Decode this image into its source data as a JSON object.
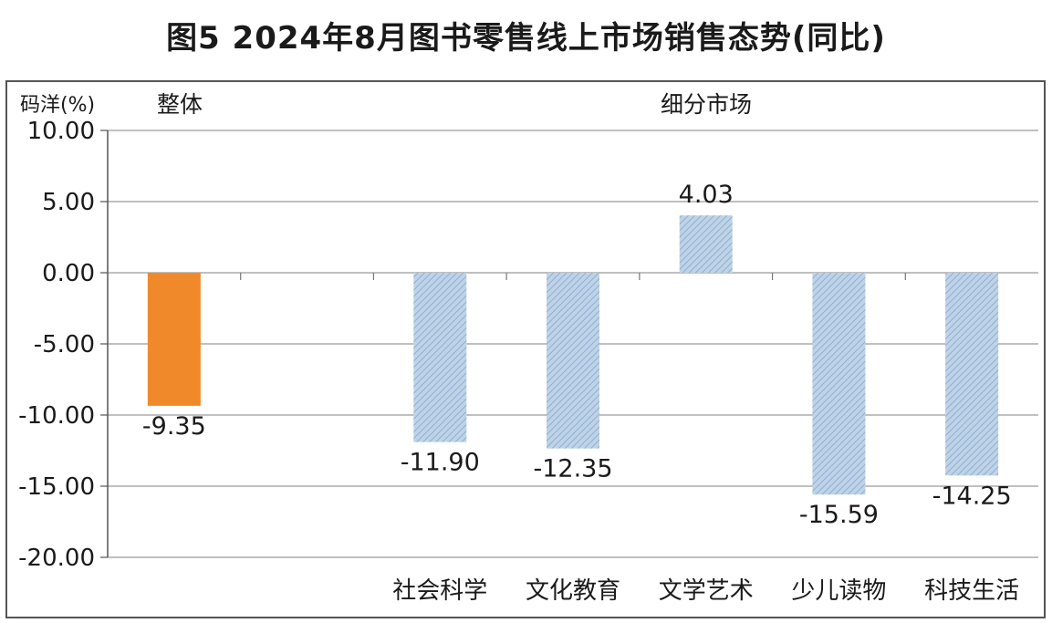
{
  "chart_data": {
    "type": "bar",
    "title": "图5  2024年8月图书零售线上市场销售态势(同比)",
    "ylabel": "码洋(%)",
    "section_labels": {
      "overall": "整体",
      "segments": "细分市场"
    },
    "ylim": [
      -20,
      10
    ],
    "yticks": [
      "10.00",
      "5.00",
      "0.00",
      "-5.00",
      "-10.00",
      "-15.00",
      "-20.00"
    ],
    "grid": true,
    "categories": [
      "",
      "",
      "社会科学",
      "文化教育",
      "文学艺术",
      "少儿读物",
      "科技生活"
    ],
    "values": [
      -9.35,
      null,
      -11.9,
      -12.35,
      4.03,
      -15.59,
      -14.25
    ],
    "data_labels": [
      "-9.35",
      "",
      "-11.90",
      "-12.35",
      "4.03",
      "-15.59",
      "-14.25"
    ],
    "colors": {
      "overall": "#F0892A",
      "segments": "#BFD3E8",
      "hatch": "#8FAFCF"
    }
  }
}
